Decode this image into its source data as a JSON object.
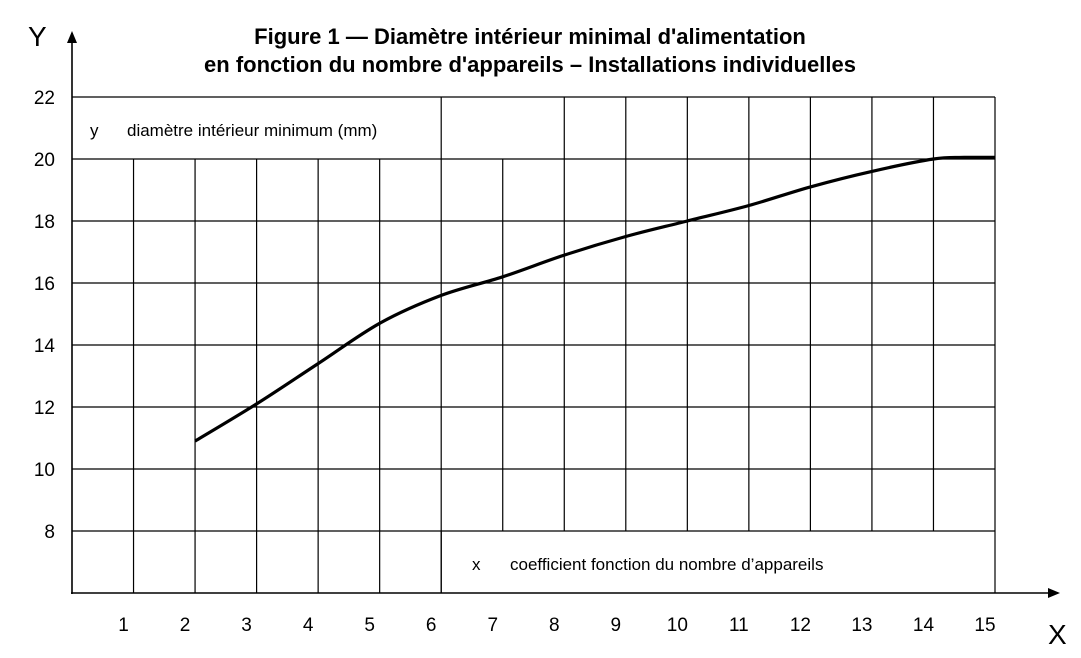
{
  "chart_data": {
    "type": "line",
    "title_lines": [
      "Figure 1 — Diamètre intérieur minimal d'alimentation",
      "en fonction du nombre d'appareils – Installations individuelles"
    ],
    "x_axis_letter": "X",
    "y_axis_letter": "Y",
    "y_legend": {
      "symbol": "y",
      "text": "diamètre intérieur minimum (mm)"
    },
    "x_legend": {
      "symbol": "x",
      "text": "coefficient fonction du nombre d’appareils"
    },
    "x_ticks": [
      "1",
      "2",
      "3",
      "4",
      "5",
      "6",
      "7",
      "8",
      "9",
      "10",
      "11",
      "12",
      "13",
      "14",
      "15"
    ],
    "y_ticks": [
      "8",
      "10",
      "12",
      "14",
      "16",
      "18",
      "20",
      "22"
    ],
    "xlim": [
      0,
      15
    ],
    "ylim": [
      6,
      22
    ],
    "grid": true,
    "series": [
      {
        "x": [
          2,
          3,
          4,
          5,
          6,
          7,
          8,
          9,
          10,
          11,
          12,
          13,
          14,
          14.5,
          15
        ],
        "y": [
          10.9,
          12.1,
          13.4,
          14.7,
          15.6,
          16.2,
          16.9,
          17.5,
          18.0,
          18.5,
          19.1,
          19.6,
          20.0,
          20.05,
          20.05
        ]
      }
    ]
  }
}
